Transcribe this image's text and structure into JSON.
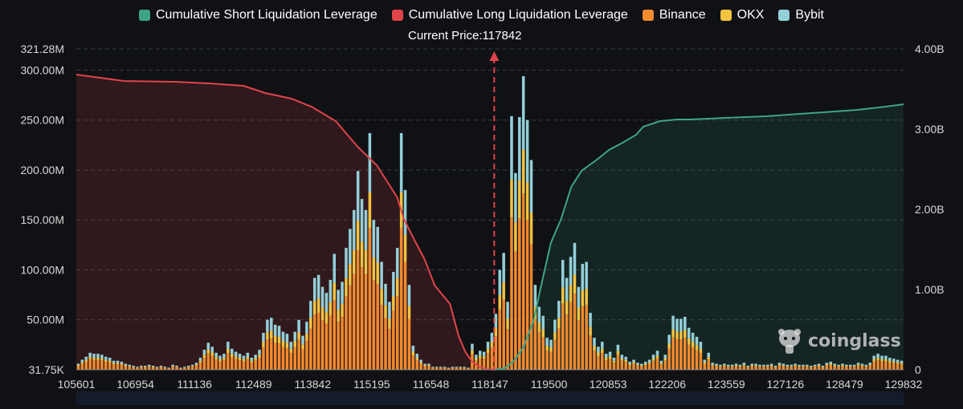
{
  "legend": {
    "items": [
      {
        "label": "Cumulative Short Liquidation Leverage",
        "color": "#3ea486",
        "key": "short"
      },
      {
        "label": "Cumulative Long Liquidation Leverage",
        "color": "#e0444b",
        "key": "long"
      },
      {
        "label": "Binance",
        "color": "#f28a2e",
        "key": "binance"
      },
      {
        "label": "OKX",
        "color": "#f3c341",
        "key": "okx"
      },
      {
        "label": "Bybit",
        "color": "#94cfd8",
        "key": "bybit"
      }
    ]
  },
  "current_price_label": "Current Price:117842",
  "watermark": "coinglass",
  "chart_data": {
    "type": "bar",
    "title": "",
    "current_price": 117842,
    "x_range": [
      105601,
      129832
    ],
    "x_ticks": [
      "105601",
      "106954",
      "111136",
      "112489",
      "113842",
      "115195",
      "116548",
      "118147",
      "119500",
      "120853",
      "122206",
      "123559",
      "127126",
      "128479",
      "129832"
    ],
    "y_left": {
      "min": 0,
      "max": 321.28,
      "unit": "M",
      "ticks": [
        {
          "value": 0,
          "label": "31.75K"
        },
        {
          "value": 50,
          "label": "50.00M"
        },
        {
          "value": 100,
          "label": "100.00M"
        },
        {
          "value": 150,
          "label": "150.00M"
        },
        {
          "value": 200,
          "label": "200.00M"
        },
        {
          "value": 250,
          "label": "250.00M"
        },
        {
          "value": 300,
          "label": "300.00M"
        },
        {
          "value": 321.28,
          "label": "321.28M"
        }
      ]
    },
    "y_right": {
      "min": 0,
      "max": 4.0,
      "unit": "B",
      "ticks": [
        {
          "value": 0,
          "label": "0"
        },
        {
          "value": 1,
          "label": "1.00B"
        },
        {
          "value": 2,
          "label": "2.00B"
        },
        {
          "value": 3,
          "label": "3.00B"
        },
        {
          "value": 4,
          "label": "4.00B"
        }
      ]
    },
    "bar_totals": [
      6,
      10,
      13,
      17,
      16,
      16,
      15,
      13,
      12,
      9,
      9,
      8,
      6,
      5,
      4,
      3,
      4,
      4,
      5,
      4,
      3,
      4,
      3,
      2,
      5,
      4,
      2,
      3,
      4,
      5,
      7,
      12,
      20,
      27,
      23,
      17,
      14,
      16,
      28,
      21,
      18,
      16,
      14,
      17,
      12,
      15,
      20,
      37,
      50,
      52,
      45,
      44,
      38,
      36,
      28,
      38,
      50,
      34,
      48,
      69,
      92,
      95,
      83,
      77,
      90,
      116,
      80,
      88,
      122,
      141,
      160,
      199,
      171,
      160,
      237,
      150,
      143,
      108,
      86,
      68,
      98,
      122,
      237,
      180,
      85,
      24,
      16,
      10,
      6,
      6,
      3,
      3,
      3,
      3,
      2,
      3,
      3,
      3,
      3,
      2,
      26,
      15,
      19,
      18,
      28,
      37,
      56,
      100,
      117,
      68,
      254,
      197,
      253,
      294,
      250,
      210,
      85,
      63,
      54,
      32,
      30,
      50,
      69,
      110,
      92,
      113,
      127,
      83,
      106,
      108,
      57,
      32,
      23,
      28,
      16,
      18,
      12,
      25,
      15,
      13,
      8,
      10,
      7,
      6,
      8,
      10,
      15,
      19,
      9,
      15,
      35,
      54,
      51,
      51,
      53,
      42,
      37,
      33,
      28,
      10,
      17,
      7,
      6,
      5,
      6,
      5,
      5,
      6,
      5,
      7,
      4,
      6,
      6,
      5,
      5,
      5,
      6,
      4,
      7,
      6,
      5,
      5,
      6,
      5,
      5,
      5,
      4,
      5,
      6,
      4,
      7,
      8,
      6,
      5,
      6,
      5,
      5,
      5,
      7,
      6,
      5,
      7,
      14,
      16,
      14,
      14,
      12,
      11,
      10,
      9
    ],
    "exchange_share": {
      "binance": 0.6,
      "okx": 0.15,
      "bybit": 0.25
    },
    "series": [
      {
        "name": "Cumulative Long Liquidation Leverage",
        "axis": "right",
        "unit": "B",
        "x": [
          105601,
          106300,
          107000,
          108500,
          109500,
          110500,
          111136,
          111900,
          112489,
          113200,
          113842,
          114400,
          114700,
          115000,
          115195,
          115500,
          115800,
          116100,
          116548,
          116800,
          117000,
          117200,
          117400,
          117600,
          117842
        ],
        "values": [
          3.68,
          3.64,
          3.6,
          3.59,
          3.57,
          3.54,
          3.45,
          3.38,
          3.28,
          3.1,
          2.78,
          2.55,
          2.35,
          2.15,
          1.88,
          1.62,
          1.38,
          1.05,
          0.82,
          0.42,
          0.22,
          0.1,
          0.04,
          0.01,
          0.0
        ]
      },
      {
        "name": "Cumulative Short Liquidation Leverage",
        "axis": "right",
        "unit": "B",
        "x": [
          117842,
          118147,
          118400,
          118700,
          119000,
          119200,
          119500,
          119800,
          120100,
          120400,
          120853,
          121200,
          121600,
          122000,
          122206,
          122700,
          123200,
          123559,
          124600,
          125800,
          127126,
          128479,
          129300,
          129832
        ],
        "values": [
          0.0,
          0.02,
          0.1,
          0.28,
          0.62,
          1.02,
          1.58,
          1.88,
          2.28,
          2.48,
          2.62,
          2.74,
          2.83,
          2.93,
          3.03,
          3.1,
          3.12,
          3.12,
          3.14,
          3.16,
          3.2,
          3.24,
          3.28,
          3.31
        ]
      }
    ]
  }
}
